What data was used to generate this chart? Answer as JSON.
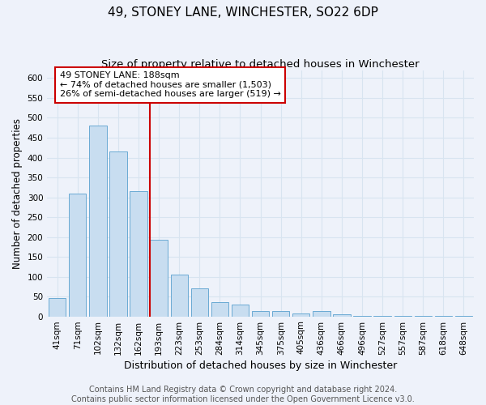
{
  "title": "49, STONEY LANE, WINCHESTER, SO22 6DP",
  "subtitle": "Size of property relative to detached houses in Winchester",
  "xlabel": "Distribution of detached houses by size in Winchester",
  "ylabel": "Number of detached properties",
  "bar_labels": [
    "41sqm",
    "71sqm",
    "102sqm",
    "132sqm",
    "162sqm",
    "193sqm",
    "223sqm",
    "253sqm",
    "284sqm",
    "314sqm",
    "345sqm",
    "375sqm",
    "405sqm",
    "436sqm",
    "466sqm",
    "496sqm",
    "527sqm",
    "557sqm",
    "587sqm",
    "618sqm",
    "648sqm"
  ],
  "bar_values": [
    47,
    310,
    480,
    415,
    315,
    192,
    105,
    70,
    36,
    30,
    14,
    14,
    8,
    14,
    5,
    2,
    2,
    1,
    1,
    1,
    1
  ],
  "bar_color": "#c8ddf0",
  "bar_edge_color": "#6aaad4",
  "red_line_bar_index": 5,
  "annotation_title": "49 STONEY LANE: 188sqm",
  "annotation_line1": "← 74% of detached houses are smaller (1,503)",
  "annotation_line2": "26% of semi-detached houses are larger (519) →",
  "annotation_box_color": "#ffffff",
  "annotation_box_edge": "#cc0000",
  "ylim": [
    0,
    620
  ],
  "yticks": [
    0,
    50,
    100,
    150,
    200,
    250,
    300,
    350,
    400,
    450,
    500,
    550,
    600
  ],
  "footer_line1": "Contains HM Land Registry data © Crown copyright and database right 2024.",
  "footer_line2": "Contains public sector information licensed under the Open Government Licence v3.0.",
  "background_color": "#eef2fa",
  "grid_color": "#d8e4f0",
  "title_fontsize": 11,
  "subtitle_fontsize": 9.5,
  "xlabel_fontsize": 9,
  "ylabel_fontsize": 8.5,
  "tick_fontsize": 7.5,
  "footer_fontsize": 7
}
